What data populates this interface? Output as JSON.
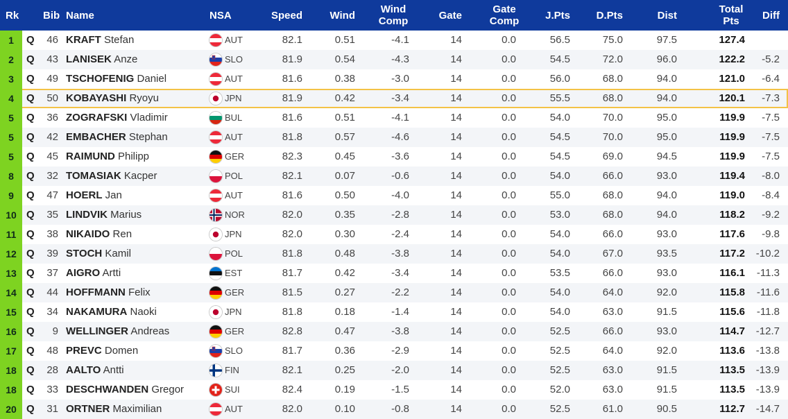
{
  "header": {
    "rk": "Rk",
    "bib": "Bib",
    "name": "Name",
    "nsa": "NSA",
    "speed": "Speed",
    "wind": "Wind",
    "wind_comp_1": "Wind",
    "wind_comp_2": "Comp",
    "gate": "Gate",
    "gate_comp_1": "Gate",
    "gate_comp_2": "Comp",
    "jpts": "J.Pts",
    "dpts": "D.Pts",
    "dist": "Dist",
    "total_1": "Total",
    "total_2": "Pts",
    "diff": "Diff"
  },
  "flag_icons": {
    "AUT": "flag-austria-icon",
    "SLO": "flag-slovenia-icon",
    "JPN": "flag-japan-icon",
    "BUL": "flag-bulgaria-icon",
    "GER": "flag-germany-icon",
    "POL": "flag-poland-icon",
    "NOR": "flag-norway-icon",
    "EST": "flag-estonia-icon",
    "FIN": "flag-finland-icon",
    "SUI": "flag-switzerland-icon"
  },
  "colors": {
    "header_bg": "#0f3a9c",
    "rank_bg": "#7ed321",
    "highlight_border": "#f3c246"
  },
  "rows": [
    {
      "rk": "1",
      "q": "Q",
      "bib": "46",
      "surname": "KRAFT",
      "first": "Stefan",
      "nsa": "AUT",
      "speed": "82.1",
      "wind": "0.51",
      "wind_comp": "-4.1",
      "gate": "14",
      "gate_comp": "0.0",
      "jpts": "56.5",
      "dpts": "75.0",
      "dist": "97.5",
      "total": "127.4",
      "diff": ""
    },
    {
      "rk": "2",
      "q": "Q",
      "bib": "43",
      "surname": "LANISEK",
      "first": "Anze",
      "nsa": "SLO",
      "speed": "81.9",
      "wind": "0.54",
      "wind_comp": "-4.3",
      "gate": "14",
      "gate_comp": "0.0",
      "jpts": "54.5",
      "dpts": "72.0",
      "dist": "96.0",
      "total": "122.2",
      "diff": "-5.2"
    },
    {
      "rk": "3",
      "q": "Q",
      "bib": "49",
      "surname": "TSCHOFENIG",
      "first": "Daniel",
      "nsa": "AUT",
      "speed": "81.6",
      "wind": "0.38",
      "wind_comp": "-3.0",
      "gate": "14",
      "gate_comp": "0.0",
      "jpts": "56.0",
      "dpts": "68.0",
      "dist": "94.0",
      "total": "121.0",
      "diff": "-6.4"
    },
    {
      "rk": "4",
      "q": "Q",
      "bib": "50",
      "surname": "KOBAYASHI",
      "first": "Ryoyu",
      "nsa": "JPN",
      "speed": "81.9",
      "wind": "0.42",
      "wind_comp": "-3.4",
      "gate": "14",
      "gate_comp": "0.0",
      "jpts": "55.5",
      "dpts": "68.0",
      "dist": "94.0",
      "total": "120.1",
      "diff": "-7.3",
      "highlight": true
    },
    {
      "rk": "5",
      "q": "Q",
      "bib": "36",
      "surname": "ZOGRAFSKI",
      "first": "Vladimir",
      "nsa": "BUL",
      "speed": "81.6",
      "wind": "0.51",
      "wind_comp": "-4.1",
      "gate": "14",
      "gate_comp": "0.0",
      "jpts": "54.0",
      "dpts": "70.0",
      "dist": "95.0",
      "total": "119.9",
      "diff": "-7.5"
    },
    {
      "rk": "5",
      "q": "Q",
      "bib": "42",
      "surname": "EMBACHER",
      "first": "Stephan",
      "nsa": "AUT",
      "speed": "81.8",
      "wind": "0.57",
      "wind_comp": "-4.6",
      "gate": "14",
      "gate_comp": "0.0",
      "jpts": "54.5",
      "dpts": "70.0",
      "dist": "95.0",
      "total": "119.9",
      "diff": "-7.5"
    },
    {
      "rk": "5",
      "q": "Q",
      "bib": "45",
      "surname": "RAIMUND",
      "first": "Philipp",
      "nsa": "GER",
      "speed": "82.3",
      "wind": "0.45",
      "wind_comp": "-3.6",
      "gate": "14",
      "gate_comp": "0.0",
      "jpts": "54.5",
      "dpts": "69.0",
      "dist": "94.5",
      "total": "119.9",
      "diff": "-7.5"
    },
    {
      "rk": "8",
      "q": "Q",
      "bib": "32",
      "surname": "TOMASIAK",
      "first": "Kacper",
      "nsa": "POL",
      "speed": "82.1",
      "wind": "0.07",
      "wind_comp": "-0.6",
      "gate": "14",
      "gate_comp": "0.0",
      "jpts": "54.0",
      "dpts": "66.0",
      "dist": "93.0",
      "total": "119.4",
      "diff": "-8.0"
    },
    {
      "rk": "9",
      "q": "Q",
      "bib": "47",
      "surname": "HOERL",
      "first": "Jan",
      "nsa": "AUT",
      "speed": "81.6",
      "wind": "0.50",
      "wind_comp": "-4.0",
      "gate": "14",
      "gate_comp": "0.0",
      "jpts": "55.0",
      "dpts": "68.0",
      "dist": "94.0",
      "total": "119.0",
      "diff": "-8.4"
    },
    {
      "rk": "10",
      "q": "Q",
      "bib": "35",
      "surname": "LINDVIK",
      "first": "Marius",
      "nsa": "NOR",
      "speed": "82.0",
      "wind": "0.35",
      "wind_comp": "-2.8",
      "gate": "14",
      "gate_comp": "0.0",
      "jpts": "53.0",
      "dpts": "68.0",
      "dist": "94.0",
      "total": "118.2",
      "diff": "-9.2"
    },
    {
      "rk": "11",
      "q": "Q",
      "bib": "38",
      "surname": "NIKAIDO",
      "first": "Ren",
      "nsa": "JPN",
      "speed": "82.0",
      "wind": "0.30",
      "wind_comp": "-2.4",
      "gate": "14",
      "gate_comp": "0.0",
      "jpts": "54.0",
      "dpts": "66.0",
      "dist": "93.0",
      "total": "117.6",
      "diff": "-9.8"
    },
    {
      "rk": "12",
      "q": "Q",
      "bib": "39",
      "surname": "STOCH",
      "first": "Kamil",
      "nsa": "POL",
      "speed": "81.8",
      "wind": "0.48",
      "wind_comp": "-3.8",
      "gate": "14",
      "gate_comp": "0.0",
      "jpts": "54.0",
      "dpts": "67.0",
      "dist": "93.5",
      "total": "117.2",
      "diff": "-10.2"
    },
    {
      "rk": "13",
      "q": "Q",
      "bib": "37",
      "surname": "AIGRO",
      "first": "Artti",
      "nsa": "EST",
      "speed": "81.7",
      "wind": "0.42",
      "wind_comp": "-3.4",
      "gate": "14",
      "gate_comp": "0.0",
      "jpts": "53.5",
      "dpts": "66.0",
      "dist": "93.0",
      "total": "116.1",
      "diff": "-11.3"
    },
    {
      "rk": "14",
      "q": "Q",
      "bib": "44",
      "surname": "HOFFMANN",
      "first": "Felix",
      "nsa": "GER",
      "speed": "81.5",
      "wind": "0.27",
      "wind_comp": "-2.2",
      "gate": "14",
      "gate_comp": "0.0",
      "jpts": "54.0",
      "dpts": "64.0",
      "dist": "92.0",
      "total": "115.8",
      "diff": "-11.6"
    },
    {
      "rk": "15",
      "q": "Q",
      "bib": "34",
      "surname": "NAKAMURA",
      "first": "Naoki",
      "nsa": "JPN",
      "speed": "81.8",
      "wind": "0.18",
      "wind_comp": "-1.4",
      "gate": "14",
      "gate_comp": "0.0",
      "jpts": "54.0",
      "dpts": "63.0",
      "dist": "91.5",
      "total": "115.6",
      "diff": "-11.8"
    },
    {
      "rk": "16",
      "q": "Q",
      "bib": "9",
      "surname": "WELLINGER",
      "first": "Andreas",
      "nsa": "GER",
      "speed": "82.8",
      "wind": "0.47",
      "wind_comp": "-3.8",
      "gate": "14",
      "gate_comp": "0.0",
      "jpts": "52.5",
      "dpts": "66.0",
      "dist": "93.0",
      "total": "114.7",
      "diff": "-12.7"
    },
    {
      "rk": "17",
      "q": "Q",
      "bib": "48",
      "surname": "PREVC",
      "first": "Domen",
      "nsa": "SLO",
      "speed": "81.7",
      "wind": "0.36",
      "wind_comp": "-2.9",
      "gate": "14",
      "gate_comp": "0.0",
      "jpts": "52.5",
      "dpts": "64.0",
      "dist": "92.0",
      "total": "113.6",
      "diff": "-13.8"
    },
    {
      "rk": "18",
      "q": "Q",
      "bib": "28",
      "surname": "AALTO",
      "first": "Antti",
      "nsa": "FIN",
      "speed": "82.1",
      "wind": "0.25",
      "wind_comp": "-2.0",
      "gate": "14",
      "gate_comp": "0.0",
      "jpts": "52.5",
      "dpts": "63.0",
      "dist": "91.5",
      "total": "113.5",
      "diff": "-13.9"
    },
    {
      "rk": "18",
      "q": "Q",
      "bib": "33",
      "surname": "DESCHWANDEN",
      "first": "Gregor",
      "nsa": "SUI",
      "speed": "82.4",
      "wind": "0.19",
      "wind_comp": "-1.5",
      "gate": "14",
      "gate_comp": "0.0",
      "jpts": "52.0",
      "dpts": "63.0",
      "dist": "91.5",
      "total": "113.5",
      "diff": "-13.9"
    },
    {
      "rk": "20",
      "q": "Q",
      "bib": "31",
      "surname": "ORTNER",
      "first": "Maximilian",
      "nsa": "AUT",
      "speed": "82.0",
      "wind": "0.10",
      "wind_comp": "-0.8",
      "gate": "14",
      "gate_comp": "0.0",
      "jpts": "52.5",
      "dpts": "61.0",
      "dist": "90.5",
      "total": "112.7",
      "diff": "-14.7"
    }
  ]
}
